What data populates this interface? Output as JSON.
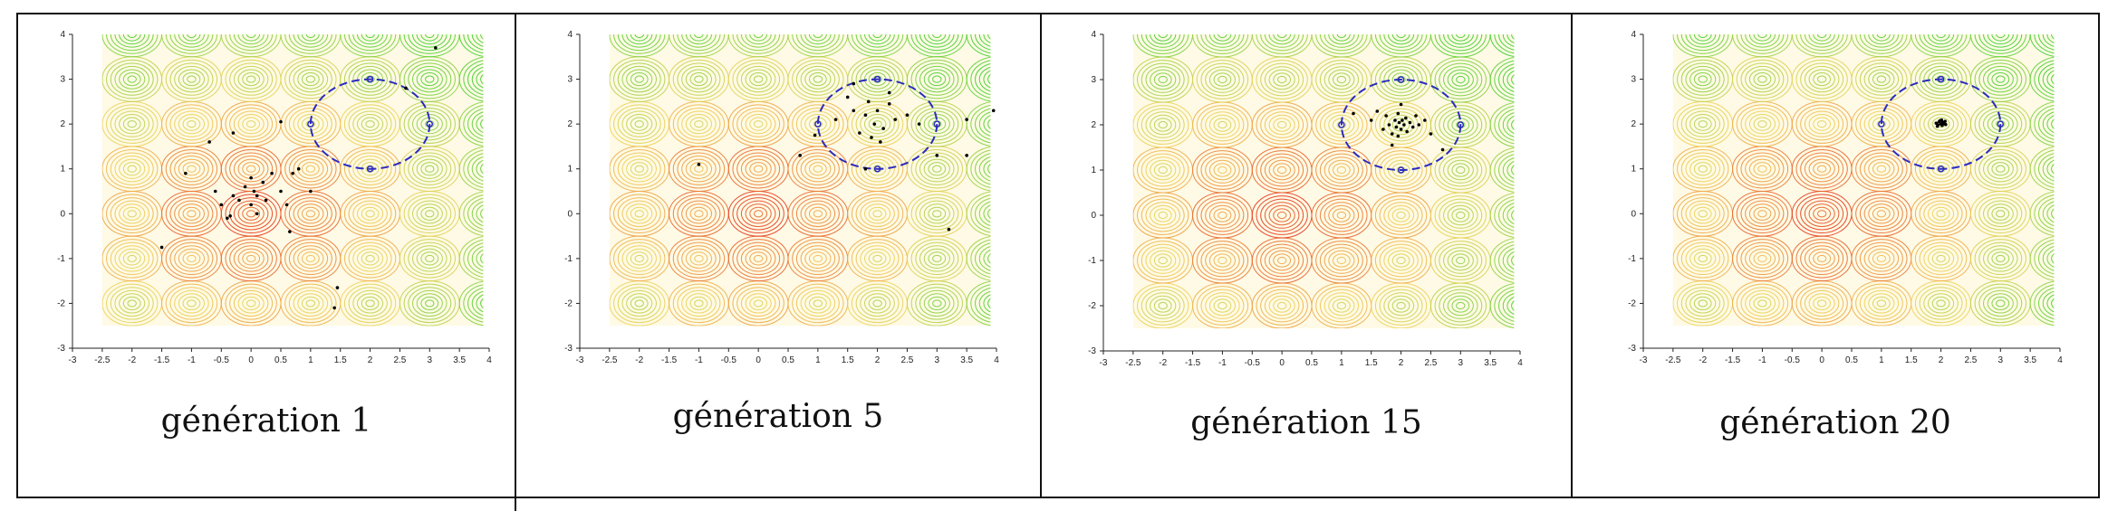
{
  "chart_data": [
    {
      "type": "scatter",
      "title": "",
      "caption": "génération 1",
      "xlabel": "",
      "ylabel": "",
      "xlim": [
        -3,
        4
      ],
      "ylim": [
        -3,
        4
      ],
      "xticks": [
        "-3",
        "-2.5",
        "-2",
        "-1.5",
        "-1",
        "-0.5",
        "0",
        "0.5",
        "1",
        "1.5",
        "2",
        "2.5",
        "3",
        "3.5",
        "4"
      ],
      "yticks": [
        "-3",
        "-2",
        "-1",
        "0",
        "1",
        "2",
        "3",
        "4"
      ],
      "contour_domain": {
        "x": [
          -2.5,
          3.9
        ],
        "y": [
          -2.5,
          4
        ]
      },
      "optimum_ellipse": {
        "center": [
          2,
          2
        ],
        "rx": 1,
        "ry": 1,
        "color": "#2b2bbf",
        "style": "dashed"
      },
      "marker_point": [
        1,
        2
      ],
      "points": [
        [
          -1.5,
          -0.75
        ],
        [
          -1.1,
          0.9
        ],
        [
          -0.7,
          1.6
        ],
        [
          -0.6,
          0.5
        ],
        [
          -0.5,
          0.2
        ],
        [
          -0.4,
          -0.1
        ],
        [
          -0.3,
          0.4
        ],
        [
          -0.2,
          0.3
        ],
        [
          -0.1,
          0.6
        ],
        [
          0.0,
          0.8
        ],
        [
          0.0,
          0.2
        ],
        [
          0.05,
          0.5
        ],
        [
          0.1,
          0.4
        ],
        [
          0.1,
          0.0
        ],
        [
          0.2,
          0.7
        ],
        [
          0.25,
          0.3
        ],
        [
          0.35,
          0.9
        ],
        [
          0.5,
          0.5
        ],
        [
          0.6,
          0.2
        ],
        [
          0.65,
          -0.4
        ],
        [
          0.7,
          0.9
        ],
        [
          0.8,
          1.0
        ],
        [
          -0.3,
          1.8
        ],
        [
          0.5,
          2.05
        ],
        [
          1.0,
          0.5
        ],
        [
          1.4,
          -2.1
        ],
        [
          1.45,
          -1.65
        ],
        [
          2.6,
          2.8
        ],
        [
          3.1,
          3.7
        ],
        [
          -0.35,
          -0.05
        ]
      ]
    },
    {
      "type": "scatter",
      "title": "",
      "caption": "génération 5",
      "xlabel": "",
      "ylabel": "",
      "xlim": [
        -3,
        4
      ],
      "ylim": [
        -3,
        4
      ],
      "xticks": [
        "-3",
        "-2.5",
        "-2",
        "-1.5",
        "-1",
        "-0.5",
        "0",
        "0.5",
        "1",
        "1.5",
        "2",
        "2.5",
        "3",
        "3.5",
        "4"
      ],
      "yticks": [
        "-3",
        "-2",
        "-1",
        "0",
        "1",
        "2",
        "3",
        "4"
      ],
      "contour_domain": {
        "x": [
          -2.5,
          3.9
        ],
        "y": [
          -2.5,
          4
        ]
      },
      "optimum_ellipse": {
        "center": [
          2,
          2
        ],
        "rx": 1,
        "ry": 1,
        "color": "#2b2bbf",
        "style": "dashed"
      },
      "marker_point": [
        1,
        2
      ],
      "points": [
        [
          -1.0,
          1.1
        ],
        [
          0.7,
          1.3
        ],
        [
          0.95,
          1.75
        ],
        [
          1.3,
          2.1
        ],
        [
          1.5,
          2.6
        ],
        [
          1.6,
          2.3
        ],
        [
          1.7,
          1.8
        ],
        [
          1.8,
          2.2
        ],
        [
          1.85,
          2.5
        ],
        [
          1.9,
          1.7
        ],
        [
          1.95,
          2.0
        ],
        [
          2.0,
          2.3
        ],
        [
          2.05,
          1.6
        ],
        [
          2.1,
          1.9
        ],
        [
          2.2,
          2.45
        ],
        [
          2.3,
          2.1
        ],
        [
          1.8,
          1.0
        ],
        [
          2.5,
          2.2
        ],
        [
          2.7,
          2.0
        ],
        [
          3.0,
          1.3
        ],
        [
          3.2,
          -0.35
        ],
        [
          3.5,
          2.1
        ],
        [
          3.5,
          1.3
        ],
        [
          3.95,
          2.3
        ],
        [
          2.2,
          2.7
        ],
        [
          1.6,
          2.9
        ]
      ]
    },
    {
      "type": "scatter",
      "title": "",
      "caption": "génération 15",
      "xlabel": "",
      "ylabel": "",
      "xlim": [
        -3,
        4
      ],
      "ylim": [
        -3,
        4
      ],
      "xticks": [
        "-3",
        "-2.5",
        "-2",
        "-1.5",
        "-1",
        "-0.5",
        "0",
        "0.5",
        "1",
        "1.5",
        "2",
        "2.5",
        "3",
        "3.5",
        "4"
      ],
      "yticks": [
        "-3",
        "-2",
        "-1",
        "0",
        "1",
        "2",
        "3",
        "4"
      ],
      "contour_domain": {
        "x": [
          -2.5,
          3.9
        ],
        "y": [
          -2.5,
          4
        ]
      },
      "optimum_ellipse": {
        "center": [
          2,
          2
        ],
        "rx": 1,
        "ry": 1,
        "color": "#2b2bbf",
        "style": "dashed"
      },
      "marker_point": [
        1,
        2
      ],
      "points": [
        [
          1.2,
          2.25
        ],
        [
          1.5,
          2.1
        ],
        [
          1.6,
          2.3
        ],
        [
          1.7,
          1.9
        ],
        [
          1.75,
          2.2
        ],
        [
          1.8,
          2.0
        ],
        [
          1.85,
          1.8
        ],
        [
          1.9,
          2.1
        ],
        [
          1.92,
          1.95
        ],
        [
          1.95,
          2.25
        ],
        [
          1.97,
          2.05
        ],
        [
          2.0,
          1.9
        ],
        [
          2.02,
          2.1
        ],
        [
          2.05,
          2.0
        ],
        [
          2.08,
          2.15
        ],
        [
          2.1,
          1.85
        ],
        [
          2.15,
          2.05
        ],
        [
          2.2,
          1.95
        ],
        [
          2.25,
          2.2
        ],
        [
          2.3,
          2.0
        ],
        [
          2.0,
          2.45
        ],
        [
          1.85,
          1.55
        ],
        [
          2.5,
          1.8
        ],
        [
          2.7,
          1.45
        ],
        [
          2.4,
          2.1
        ],
        [
          1.95,
          1.75
        ]
      ]
    },
    {
      "type": "scatter",
      "title": "",
      "caption": "génération 20",
      "xlabel": "",
      "ylabel": "",
      "xlim": [
        -3,
        4
      ],
      "ylim": [
        -3,
        4
      ],
      "xticks": [
        "-3",
        "-2.5",
        "-2",
        "-1.5",
        "-1",
        "-0.5",
        "0",
        "0.5",
        "1",
        "1.5",
        "2",
        "2.5",
        "3",
        "3.5",
        "4"
      ],
      "yticks": [
        "-3",
        "-2",
        "-1",
        "0",
        "1",
        "2",
        "3",
        "4"
      ],
      "contour_domain": {
        "x": [
          -2.5,
          3.9
        ],
        "y": [
          -2.5,
          4
        ]
      },
      "optimum_ellipse": {
        "center": [
          2,
          2
        ],
        "rx": 1,
        "ry": 1,
        "color": "#2b2bbf",
        "style": "dashed"
      },
      "marker_point": [
        1,
        2
      ],
      "points": [
        [
          1.92,
          2.02
        ],
        [
          1.95,
          1.98
        ],
        [
          1.97,
          2.05
        ],
        [
          2.0,
          2.0
        ],
        [
          2.02,
          1.97
        ],
        [
          2.03,
          2.04
        ],
        [
          2.05,
          2.01
        ],
        [
          1.98,
          2.07
        ],
        [
          2.07,
          2.06
        ],
        [
          1.94,
          1.95
        ],
        [
          2.01,
          2.09
        ],
        [
          2.08,
          1.99
        ]
      ]
    }
  ],
  "colors": {
    "contour_low": "#e63a1e",
    "contour_mid": "#f0d25a",
    "contour_high": "#3ccf2e",
    "ellipse": "#2b2bbf",
    "points": "#000000",
    "frame": "#111111"
  }
}
